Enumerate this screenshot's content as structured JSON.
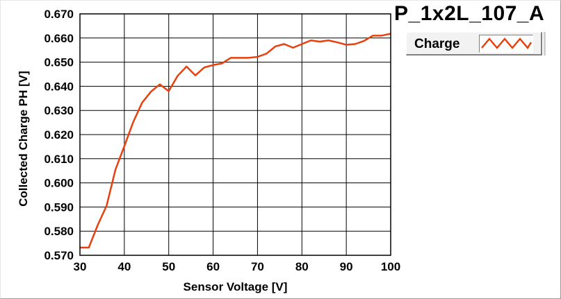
{
  "chart_data": {
    "type": "line",
    "title": "P_1x2L_107_A",
    "xlabel": "Sensor Voltage [V]",
    "ylabel": "Collected Charge PH [V]",
    "xlim": [
      30,
      100
    ],
    "ylim": [
      0.57,
      0.67
    ],
    "x_ticks": [
      "30",
      "40",
      "50",
      "60",
      "70",
      "80",
      "90",
      "100"
    ],
    "y_ticks": [
      "0.570",
      "0.580",
      "0.590",
      "0.600",
      "0.610",
      "0.620",
      "0.630",
      "0.640",
      "0.650",
      "0.660",
      "0.670"
    ],
    "grid": true,
    "legend_position": "top-right",
    "series": [
      {
        "name": "Charge",
        "color": "#e8400c",
        "x": [
          30,
          32,
          34,
          36,
          38,
          40,
          42,
          44,
          46,
          48,
          50,
          52,
          54,
          56,
          58,
          60,
          62,
          64,
          66,
          68,
          70,
          72,
          74,
          76,
          78,
          80,
          82,
          84,
          86,
          88,
          90,
          92,
          94,
          96,
          98,
          100
        ],
        "y": [
          0.5732,
          0.5732,
          0.5825,
          0.5905,
          0.6055,
          0.6152,
          0.6252,
          0.6332,
          0.6378,
          0.6408,
          0.638,
          0.6443,
          0.6482,
          0.6445,
          0.6478,
          0.6488,
          0.6495,
          0.6518,
          0.6518,
          0.6518,
          0.6522,
          0.6535,
          0.6565,
          0.6575,
          0.656,
          0.6575,
          0.659,
          0.6585,
          0.659,
          0.6582,
          0.6572,
          0.6575,
          0.6588,
          0.661,
          0.661,
          0.6618
        ]
      }
    ]
  }
}
